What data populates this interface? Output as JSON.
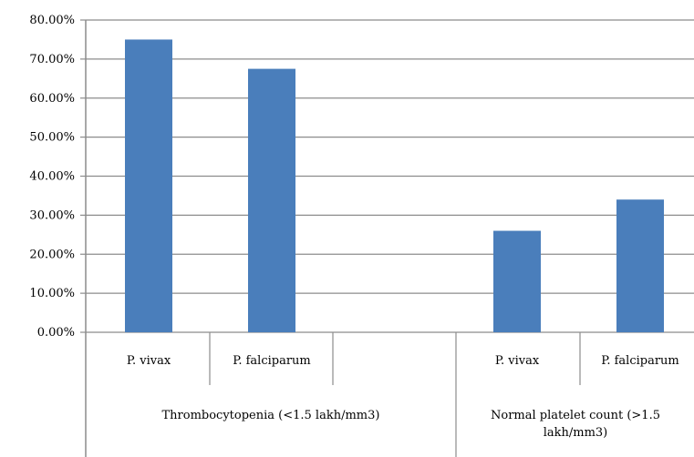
{
  "chart_data": {
    "type": "bar",
    "title": "",
    "xlabel": "",
    "ylabel": "",
    "ylim": [
      0,
      0.8
    ],
    "y_ticks": [
      "0.00%",
      "10.00%",
      "20.00%",
      "30.00%",
      "40.00%",
      "50.00%",
      "60.00%",
      "70.00%",
      "80.00%"
    ],
    "grid": true,
    "legend": "none",
    "bar_color": "#4a7ebb",
    "categories": [
      "P. vivax",
      "P. falciparum",
      "",
      "P. vivax",
      "P. falciparum"
    ],
    "values": [
      0.75,
      0.675,
      null,
      0.26,
      0.34
    ],
    "groups": [
      {
        "label_lines": [
          "Thrombocytopenia (<1.5 lakh/mm3)"
        ],
        "span": [
          0,
          2
        ]
      },
      {
        "label_lines": [
          "Normal platelet count (>1.5",
          "lakh/mm3)"
        ],
        "span": [
          3,
          4
        ]
      }
    ]
  }
}
